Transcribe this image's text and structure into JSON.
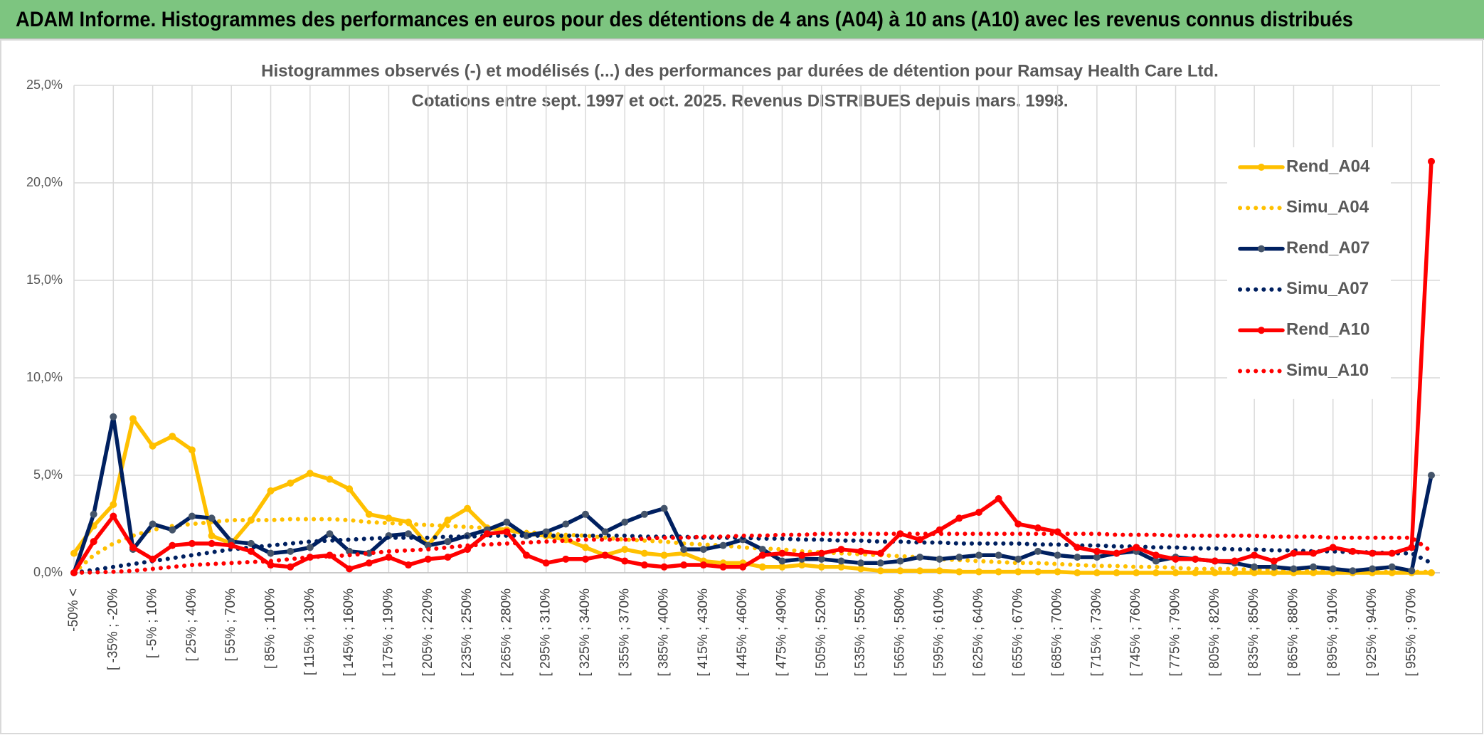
{
  "header": {
    "title": "ADAM Informe. Histogrammes des performances en euros pour des détentions de 4 ans (A04) à 10 ans (A10) avec les revenus connus distribués"
  },
  "chart_data": {
    "type": "line",
    "title": "Histogrammes observés (-) et modélisés (...) des performances par durées de détention pour Ramsay Health Care Ltd.",
    "subtitle": "Cotations entre sept. 1997 et oct. 2025. Revenus DISTRIBUES depuis mars. 1998.",
    "categories": [
      "-50% <",
      null,
      "[ -35% ; -20%",
      null,
      "[ -5% ; 10%",
      null,
      "[ 25% ; 40%",
      null,
      "[ 55% ; 70%",
      null,
      "[ 85% ; 100%",
      null,
      "[ 115% ; 130%",
      null,
      "[ 145% ; 160%",
      null,
      "[ 175% ; 190%",
      null,
      "[ 205% ; 220%",
      null,
      "[ 235% ; 250%",
      null,
      "[ 265% ; 280%",
      null,
      "[ 295% ; 310%",
      null,
      "[ 325% ; 340%",
      null,
      "[ 355% ; 370%",
      null,
      "[ 385% ; 400%",
      null,
      "[ 415% ; 430%",
      null,
      "[ 445% ; 460%",
      null,
      "[ 475% ; 490%",
      null,
      "[ 505% ; 520%",
      null,
      "[ 535% ; 550%",
      null,
      "[ 565% ; 580%",
      null,
      "[ 595% ; 610%",
      null,
      "[ 625% ; 640%",
      null,
      "[ 655% ; 670%",
      null,
      "[ 685% ; 700%",
      null,
      "[ 715% ; 730%",
      null,
      "[ 745% ; 760%",
      null,
      "[ 775% ; 790%",
      null,
      "[ 805% ; 820%",
      null,
      "[ 835% ; 850%",
      null,
      "[ 865% ; 880%",
      null,
      "[ 895% ; 910%",
      null,
      "[ 925% ; 940%",
      null,
      "[ 955% ; 970%",
      null
    ],
    "series": [
      {
        "name": "Rend_A04",
        "color": "#FFC000",
        "style": "solid",
        "values": [
          1.0,
          2.4,
          3.5,
          7.9,
          6.5,
          7.0,
          6.3,
          1.9,
          1.5,
          2.7,
          4.2,
          4.6,
          5.1,
          4.8,
          4.3,
          3.0,
          2.8,
          2.6,
          1.4,
          2.7,
          3.3,
          2.3,
          2.2,
          2.0,
          1.9,
          1.7,
          1.3,
          0.9,
          1.2,
          1.0,
          0.9,
          1.0,
          0.6,
          0.5,
          0.5,
          0.3,
          0.3,
          0.4,
          0.3,
          0.3,
          0.2,
          0.1,
          0.1,
          0.1,
          0.1,
          0.05,
          0.05,
          0.05,
          0.05,
          0.05,
          0.05,
          0,
          0,
          0,
          0,
          0,
          0,
          0,
          0,
          0,
          0,
          0,
          0,
          0,
          0,
          0,
          0,
          0,
          0,
          0
        ]
      },
      {
        "name": "Simu_A04",
        "color": "#FFC000",
        "style": "dotted",
        "values": [
          0,
          0.9,
          1.5,
          1.9,
          2.2,
          2.4,
          2.5,
          2.6,
          2.7,
          2.7,
          2.7,
          2.75,
          2.75,
          2.75,
          2.7,
          2.6,
          2.55,
          2.5,
          2.45,
          2.4,
          2.35,
          2.3,
          2.2,
          2.1,
          2.0,
          1.95,
          1.9,
          1.8,
          1.7,
          1.65,
          1.6,
          1.5,
          1.45,
          1.4,
          1.3,
          1.25,
          1.2,
          1.1,
          1.05,
          1.0,
          0.95,
          0.9,
          0.85,
          0.8,
          0.7,
          0.65,
          0.6,
          0.55,
          0.5,
          0.5,
          0.45,
          0.4,
          0.35,
          0.35,
          0.3,
          0.3,
          0.25,
          0.2,
          0.2,
          0.2,
          0.15,
          0.15,
          0.1,
          0.1,
          0.1,
          0.1,
          0.05,
          0.05,
          0.05,
          0.05
        ]
      },
      {
        "name": "Rend_A07",
        "color": "#002060",
        "marker_color": "#44546A",
        "style": "solid",
        "values": [
          0,
          3.0,
          8.0,
          1.2,
          2.5,
          2.2,
          2.9,
          2.8,
          1.6,
          1.5,
          1.0,
          1.1,
          1.3,
          2.0,
          1.1,
          1.0,
          1.9,
          2.0,
          1.4,
          1.6,
          1.9,
          2.2,
          2.6,
          1.9,
          2.1,
          2.5,
          3.0,
          2.1,
          2.6,
          3.0,
          3.3,
          1.2,
          1.2,
          1.4,
          1.7,
          1.2,
          0.6,
          0.7,
          0.7,
          0.6,
          0.5,
          0.5,
          0.6,
          0.8,
          0.7,
          0.8,
          0.9,
          0.9,
          0.7,
          1.1,
          0.9,
          0.8,
          0.8,
          1.0,
          1.1,
          0.6,
          0.8,
          0.7,
          0.6,
          0.5,
          0.3,
          0.3,
          0.2,
          0.3,
          0.2,
          0.1,
          0.2,
          0.3,
          0.1,
          5.0
        ]
      },
      {
        "name": "Simu_A07",
        "color": "#002060",
        "style": "dotted",
        "values": [
          0,
          0.15,
          0.3,
          0.45,
          0.6,
          0.75,
          0.9,
          1.05,
          1.2,
          1.3,
          1.4,
          1.5,
          1.6,
          1.65,
          1.7,
          1.75,
          1.8,
          1.8,
          1.8,
          1.85,
          1.85,
          1.9,
          1.9,
          1.9,
          1.9,
          1.9,
          1.9,
          1.9,
          1.9,
          1.85,
          1.85,
          1.85,
          1.8,
          1.8,
          1.8,
          1.75,
          1.75,
          1.7,
          1.7,
          1.65,
          1.65,
          1.6,
          1.6,
          1.55,
          1.55,
          1.5,
          1.5,
          1.5,
          1.5,
          1.45,
          1.45,
          1.4,
          1.4,
          1.35,
          1.35,
          1.3,
          1.3,
          1.25,
          1.25,
          1.2,
          1.2,
          1.15,
          1.15,
          1.1,
          1.1,
          1.05,
          1.05,
          1.0,
          1.0,
          0.5
        ]
      },
      {
        "name": "Rend_A10",
        "color": "#FF0000",
        "style": "solid",
        "values": [
          0,
          1.6,
          2.9,
          1.3,
          0.7,
          1.4,
          1.5,
          1.5,
          1.4,
          1.1,
          0.4,
          0.3,
          0.8,
          0.9,
          0.2,
          0.5,
          0.8,
          0.4,
          0.7,
          0.8,
          1.2,
          2.0,
          2.1,
          0.9,
          0.5,
          0.7,
          0.7,
          0.9,
          0.6,
          0.4,
          0.3,
          0.4,
          0.4,
          0.3,
          0.3,
          0.9,
          1.0,
          0.9,
          1.0,
          1.2,
          1.1,
          1.0,
          2.0,
          1.7,
          2.2,
          2.8,
          3.1,
          3.8,
          2.5,
          2.3,
          2.1,
          1.3,
          1.1,
          1.0,
          1.3,
          0.9,
          0.7,
          0.7,
          0.6,
          0.6,
          0.9,
          0.6,
          1.0,
          1.0,
          1.3,
          1.1,
          1.0,
          1.0,
          1.3,
          21.1
        ]
      },
      {
        "name": "Simu_A10",
        "color": "#FF0000",
        "style": "dotted",
        "values": [
          0,
          0.02,
          0.05,
          0.1,
          0.2,
          0.3,
          0.4,
          0.45,
          0.5,
          0.55,
          0.6,
          0.7,
          0.8,
          0.85,
          0.9,
          1.0,
          1.1,
          1.15,
          1.2,
          1.3,
          1.4,
          1.45,
          1.5,
          1.55,
          1.6,
          1.65,
          1.7,
          1.7,
          1.7,
          1.75,
          1.8,
          1.8,
          1.85,
          1.85,
          1.9,
          1.9,
          1.95,
          1.95,
          2.0,
          2.0,
          2.0,
          2.0,
          2.0,
          2.0,
          2.0,
          2.0,
          2.0,
          2.0,
          2.0,
          2.0,
          2.0,
          2.0,
          2.0,
          1.95,
          1.95,
          1.95,
          1.9,
          1.9,
          1.9,
          1.9,
          1.9,
          1.85,
          1.85,
          1.85,
          1.8,
          1.8,
          1.8,
          1.8,
          1.8,
          1.1
        ]
      }
    ],
    "ylim": [
      0,
      25
    ],
    "yticks": [
      {
        "value": 0,
        "label": "0,0%"
      },
      {
        "value": 5,
        "label": "5,0%"
      },
      {
        "value": 10,
        "label": "10,0%"
      },
      {
        "value": 15,
        "label": "15,0%"
      },
      {
        "value": 20,
        "label": "20,0%"
      },
      {
        "value": 25,
        "label": "25,0%"
      }
    ],
    "grid": true,
    "legend": "right"
  }
}
